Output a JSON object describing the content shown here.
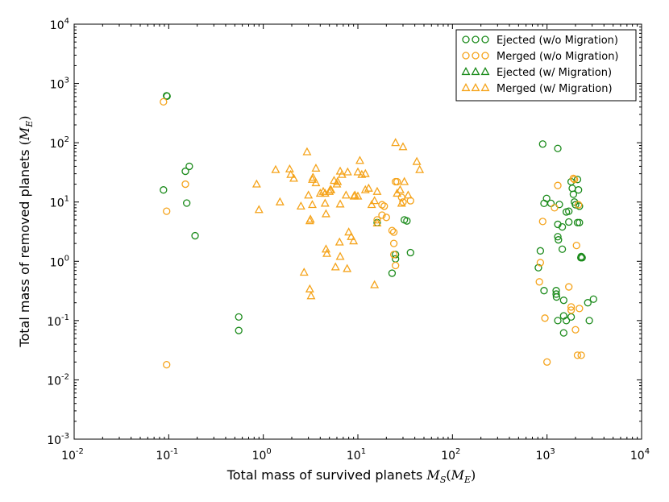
{
  "chart_data": {
    "type": "scatter",
    "xscale": "log",
    "yscale": "log",
    "xlim_exp": [
      -2,
      4
    ],
    "ylim_exp": [
      -3,
      4
    ],
    "tick_base": "10",
    "x_tick_exponents": [
      "-2",
      "-1",
      "0",
      "1",
      "2",
      "3",
      "4"
    ],
    "y_tick_exponents": [
      "-3",
      "-2",
      "-1",
      "0",
      "1",
      "2",
      "3",
      "4"
    ],
    "xlabel_text": "Total mass of survived planets ",
    "xlabel_math": "M",
    "xlabel_sub": "S",
    "xlabel_paren_open": "(",
    "xlabel_paren_m": "M",
    "xlabel_paren_sub": "E",
    "xlabel_paren_close": ")",
    "ylabel_text": "Total mass of removed planets ",
    "ylabel_paren_open": "(",
    "ylabel_paren_m": "M",
    "ylabel_paren_sub": "E",
    "ylabel_paren_close": ")",
    "legend_position": "top-right",
    "series": [
      {
        "name": "Ejected (w/o Migration)",
        "marker": "circle",
        "color": "#1a8a1a",
        "points": [
          [
            0.095,
            620
          ],
          [
            0.096,
            610
          ],
          [
            0.088,
            16
          ],
          [
            0.15,
            33
          ],
          [
            0.165,
            40
          ],
          [
            0.155,
            9.6
          ],
          [
            0.19,
            2.7
          ],
          [
            0.55,
            0.115
          ],
          [
            0.55,
            0.068
          ],
          [
            16,
            4.5
          ],
          [
            23,
            0.63
          ],
          [
            25,
            1.3
          ],
          [
            25,
            1.1
          ],
          [
            31,
            5
          ],
          [
            33,
            4.8
          ],
          [
            36,
            1.4
          ],
          [
            900,
            95
          ],
          [
            1300,
            80
          ],
          [
            810,
            0.78
          ],
          [
            850,
            1.5
          ],
          [
            930,
            0.32
          ],
          [
            930,
            9.5
          ],
          [
            990,
            11.5
          ],
          [
            1100,
            9.5
          ],
          [
            1300,
            4.2
          ],
          [
            1300,
            2.6
          ],
          [
            1320,
            2.3
          ],
          [
            1350,
            9.1
          ],
          [
            1450,
            3.8
          ],
          [
            1450,
            1.6
          ],
          [
            1250,
            0.32
          ],
          [
            1250,
            0.28
          ],
          [
            1260,
            0.25
          ],
          [
            1500,
            0.22
          ],
          [
            1500,
            0.12
          ],
          [
            1300,
            0.1
          ],
          [
            1500,
            0.062
          ],
          [
            1600,
            0.1
          ],
          [
            1600,
            6.8
          ],
          [
            1700,
            7.0
          ],
          [
            1700,
            4.6
          ],
          [
            1800,
            22
          ],
          [
            1850,
            17
          ],
          [
            1900,
            13.5
          ],
          [
            1950,
            10
          ],
          [
            2000,
            9
          ],
          [
            2100,
            4.5
          ],
          [
            2200,
            4.5
          ],
          [
            2100,
            24
          ],
          [
            2150,
            16
          ],
          [
            2200,
            8.5
          ],
          [
            2300,
            1.2
          ],
          [
            2350,
            1.15
          ],
          [
            2280,
            1.15
          ],
          [
            2700,
            0.2
          ],
          [
            3100,
            0.23
          ],
          [
            2800,
            0.1
          ],
          [
            1800,
            0.115
          ]
        ]
      },
      {
        "name": "Merged (w/o Migration)",
        "marker": "circle",
        "color": "#f5a31a",
        "points": [
          [
            0.088,
            490
          ],
          [
            0.095,
            7
          ],
          [
            0.15,
            20
          ],
          [
            0.095,
            0.018
          ],
          [
            16,
            5
          ],
          [
            18,
            6
          ],
          [
            18,
            9
          ],
          [
            19,
            8.5
          ],
          [
            20,
            5.5
          ],
          [
            23,
            3.3
          ],
          [
            24,
            3.1
          ],
          [
            24,
            2
          ],
          [
            25,
            22
          ],
          [
            26,
            22
          ],
          [
            24,
            1.3
          ],
          [
            25,
            0.85
          ],
          [
            29,
            12
          ],
          [
            30,
            10
          ],
          [
            36,
            10.5
          ],
          [
            830,
            0.45
          ],
          [
            850,
            0.95
          ],
          [
            900,
            4.7
          ],
          [
            950,
            0.11
          ],
          [
            1000,
            0.02
          ],
          [
            1200,
            8
          ],
          [
            1300,
            19
          ],
          [
            1700,
            0.37
          ],
          [
            1800,
            0.17
          ],
          [
            1800,
            0.15
          ],
          [
            1900,
            25
          ],
          [
            1950,
            24
          ],
          [
            2000,
            0.07
          ],
          [
            2050,
            1.85
          ],
          [
            2100,
            0.026
          ],
          [
            2200,
            0.16
          ],
          [
            2300,
            0.026
          ],
          [
            2150,
            9
          ]
        ]
      },
      {
        "name": "Ejected (w/ Migration)",
        "marker": "triangle",
        "color": "#1a8a1a",
        "points": []
      },
      {
        "name": "Merged (w/ Migration)",
        "marker": "triangle",
        "color": "#f5a31a",
        "points": [
          [
            0.85,
            20
          ],
          [
            0.9,
            7.4
          ],
          [
            1.35,
            35
          ],
          [
            1.5,
            10
          ],
          [
            1.9,
            36
          ],
          [
            1.95,
            29
          ],
          [
            2.1,
            25
          ],
          [
            2.5,
            8.5
          ],
          [
            2.7,
            0.65
          ],
          [
            2.9,
            70
          ],
          [
            3.0,
            13
          ],
          [
            3.1,
            0.34
          ],
          [
            3.2,
            0.26
          ],
          [
            3.1,
            4.8
          ],
          [
            3.15,
            5.1
          ],
          [
            3.3,
            9
          ],
          [
            3.3,
            24
          ],
          [
            3.35,
            26
          ],
          [
            3.6,
            21
          ],
          [
            3.6,
            37
          ],
          [
            4.0,
            14
          ],
          [
            4.3,
            15
          ],
          [
            4.5,
            14
          ],
          [
            4.5,
            9.5
          ],
          [
            4.6,
            6.3
          ],
          [
            4.6,
            1.6
          ],
          [
            4.7,
            1.35
          ],
          [
            5.0,
            15
          ],
          [
            5.1,
            16
          ],
          [
            5.2,
            16
          ],
          [
            5.6,
            23
          ],
          [
            5.8,
            0.8
          ],
          [
            6.0,
            20
          ],
          [
            6.1,
            22
          ],
          [
            6.4,
            2.1
          ],
          [
            6.5,
            33
          ],
          [
            6.5,
            9.2
          ],
          [
            6.5,
            1.2
          ],
          [
            6.8,
            29
          ],
          [
            7.5,
            13
          ],
          [
            7.7,
            0.75
          ],
          [
            7.8,
            32
          ],
          [
            8.0,
            3.1
          ],
          [
            8.5,
            2.6
          ],
          [
            9.0,
            2.2
          ],
          [
            9.1,
            12.5
          ],
          [
            9.3,
            13
          ],
          [
            10,
            32
          ],
          [
            10,
            12.5
          ],
          [
            10.5,
            50
          ],
          [
            11,
            29
          ],
          [
            12,
            30
          ],
          [
            12,
            16
          ],
          [
            13,
            17
          ],
          [
            14,
            9
          ],
          [
            15,
            0.4
          ],
          [
            15,
            10.5
          ],
          [
            16,
            15
          ],
          [
            16,
            4.4
          ],
          [
            25,
            100
          ],
          [
            26,
            14
          ],
          [
            28,
            16
          ],
          [
            29,
            9.5
          ],
          [
            30,
            85
          ],
          [
            31,
            22
          ],
          [
            34,
            13
          ],
          [
            42,
            48
          ],
          [
            45,
            35
          ]
        ]
      }
    ]
  }
}
